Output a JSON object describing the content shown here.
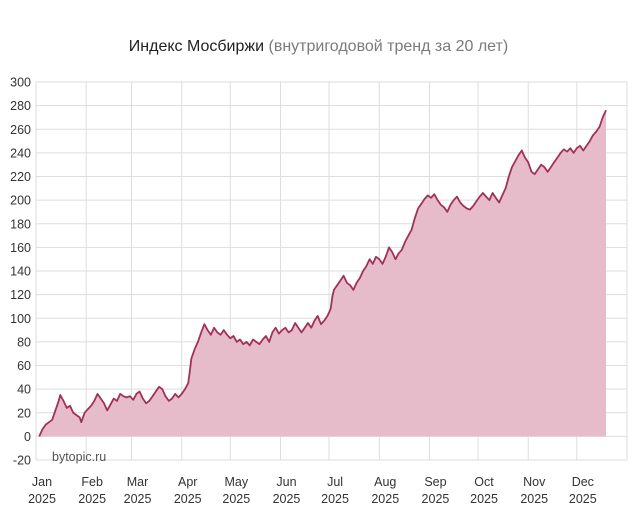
{
  "chart_data": {
    "type": "area",
    "title": "Индекс Мосбиржи",
    "subtitle": "(внутригодовой тренд за 20 лет)",
    "watermark": "bytopic.ru",
    "ylim": [
      -20,
      300
    ],
    "yticks": [
      -20,
      0,
      20,
      40,
      60,
      80,
      100,
      120,
      140,
      160,
      180,
      200,
      220,
      240,
      260,
      280,
      300
    ],
    "xlim": [
      0,
      365
    ],
    "month_ticks": [
      {
        "label": "Jan",
        "year": "2025",
        "day": 0
      },
      {
        "label": "Feb",
        "year": "2025",
        "day": 31
      },
      {
        "label": "Mar",
        "year": "2025",
        "day": 59
      },
      {
        "label": "Apr",
        "year": "2025",
        "day": 90
      },
      {
        "label": "May",
        "year": "2025",
        "day": 120
      },
      {
        "label": "Jun",
        "year": "2025",
        "day": 151
      },
      {
        "label": "Jul",
        "year": "2025",
        "day": 181
      },
      {
        "label": "Aug",
        "year": "2025",
        "day": 212
      },
      {
        "label": "Sep",
        "year": "2025",
        "day": 243
      },
      {
        "label": "Oct",
        "year": "2025",
        "day": 273
      },
      {
        "label": "Nov",
        "year": "2025",
        "day": 304
      },
      {
        "label": "Dec",
        "year": "2025",
        "day": 334
      }
    ],
    "grid": true,
    "series": [
      {
        "line_color": "#a3305a",
        "fill_color": "#e6bccb",
        "points": [
          [
            2,
            0
          ],
          [
            4,
            6
          ],
          [
            6,
            10
          ],
          [
            8,
            12
          ],
          [
            10,
            14
          ],
          [
            12,
            22
          ],
          [
            14,
            30
          ],
          [
            15,
            35
          ],
          [
            17,
            30
          ],
          [
            19,
            24
          ],
          [
            21,
            26
          ],
          [
            23,
            20
          ],
          [
            25,
            18
          ],
          [
            27,
            16
          ],
          [
            28,
            12
          ],
          [
            30,
            20
          ],
          [
            32,
            23
          ],
          [
            34,
            26
          ],
          [
            36,
            30
          ],
          [
            38,
            36
          ],
          [
            40,
            32
          ],
          [
            42,
            28
          ],
          [
            44,
            22
          ],
          [
            46,
            27
          ],
          [
            48,
            32
          ],
          [
            50,
            30
          ],
          [
            52,
            36
          ],
          [
            54,
            34
          ],
          [
            56,
            33
          ],
          [
            58,
            34
          ],
          [
            60,
            31
          ],
          [
            62,
            36
          ],
          [
            64,
            38
          ],
          [
            66,
            32
          ],
          [
            68,
            28
          ],
          [
            70,
            30
          ],
          [
            72,
            34
          ],
          [
            74,
            38
          ],
          [
            76,
            42
          ],
          [
            78,
            40
          ],
          [
            80,
            34
          ],
          [
            82,
            30
          ],
          [
            84,
            32
          ],
          [
            86,
            36
          ],
          [
            88,
            33
          ],
          [
            90,
            36
          ],
          [
            92,
            40
          ],
          [
            94,
            45
          ],
          [
            95,
            55
          ],
          [
            96,
            66
          ],
          [
            98,
            74
          ],
          [
            100,
            80
          ],
          [
            102,
            88
          ],
          [
            104,
            95
          ],
          [
            106,
            90
          ],
          [
            108,
            86
          ],
          [
            110,
            92
          ],
          [
            112,
            88
          ],
          [
            114,
            86
          ],
          [
            116,
            90
          ],
          [
            118,
            86
          ],
          [
            120,
            83
          ],
          [
            122,
            85
          ],
          [
            124,
            80
          ],
          [
            126,
            82
          ],
          [
            128,
            78
          ],
          [
            130,
            80
          ],
          [
            132,
            77
          ],
          [
            134,
            82
          ],
          [
            136,
            80
          ],
          [
            138,
            78
          ],
          [
            140,
            82
          ],
          [
            142,
            85
          ],
          [
            144,
            80
          ],
          [
            146,
            88
          ],
          [
            148,
            92
          ],
          [
            150,
            87
          ],
          [
            152,
            90
          ],
          [
            154,
            92
          ],
          [
            156,
            88
          ],
          [
            158,
            90
          ],
          [
            160,
            96
          ],
          [
            162,
            92
          ],
          [
            164,
            88
          ],
          [
            166,
            92
          ],
          [
            168,
            96
          ],
          [
            170,
            92
          ],
          [
            172,
            98
          ],
          [
            174,
            102
          ],
          [
            176,
            95
          ],
          [
            178,
            98
          ],
          [
            180,
            102
          ],
          [
            182,
            108
          ],
          [
            183,
            118
          ],
          [
            184,
            124
          ],
          [
            186,
            128
          ],
          [
            188,
            132
          ],
          [
            190,
            136
          ],
          [
            192,
            130
          ],
          [
            194,
            128
          ],
          [
            196,
            124
          ],
          [
            198,
            130
          ],
          [
            200,
            134
          ],
          [
            202,
            140
          ],
          [
            204,
            144
          ],
          [
            206,
            150
          ],
          [
            208,
            146
          ],
          [
            210,
            152
          ],
          [
            212,
            150
          ],
          [
            214,
            146
          ],
          [
            216,
            152
          ],
          [
            218,
            160
          ],
          [
            220,
            156
          ],
          [
            222,
            150
          ],
          [
            224,
            155
          ],
          [
            226,
            158
          ],
          [
            228,
            165
          ],
          [
            230,
            170
          ],
          [
            232,
            175
          ],
          [
            234,
            185
          ],
          [
            236,
            193
          ],
          [
            238,
            197
          ],
          [
            240,
            201
          ],
          [
            242,
            204
          ],
          [
            244,
            202
          ],
          [
            246,
            205
          ],
          [
            248,
            200
          ],
          [
            250,
            196
          ],
          [
            252,
            194
          ],
          [
            254,
            190
          ],
          [
            256,
            196
          ],
          [
            258,
            200
          ],
          [
            260,
            203
          ],
          [
            262,
            198
          ],
          [
            264,
            195
          ],
          [
            266,
            193
          ],
          [
            268,
            192
          ],
          [
            270,
            195
          ],
          [
            272,
            199
          ],
          [
            274,
            203
          ],
          [
            276,
            206
          ],
          [
            278,
            203
          ],
          [
            280,
            200
          ],
          [
            282,
            206
          ],
          [
            284,
            202
          ],
          [
            286,
            198
          ],
          [
            288,
            204
          ],
          [
            290,
            210
          ],
          [
            292,
            220
          ],
          [
            294,
            228
          ],
          [
            296,
            233
          ],
          [
            298,
            238
          ],
          [
            300,
            242
          ],
          [
            302,
            236
          ],
          [
            304,
            232
          ],
          [
            306,
            224
          ],
          [
            308,
            222
          ],
          [
            310,
            226
          ],
          [
            312,
            230
          ],
          [
            314,
            228
          ],
          [
            316,
            224
          ],
          [
            318,
            228
          ],
          [
            320,
            232
          ],
          [
            322,
            236
          ],
          [
            324,
            240
          ],
          [
            326,
            243
          ],
          [
            328,
            241
          ],
          [
            330,
            244
          ],
          [
            332,
            240
          ],
          [
            334,
            244
          ],
          [
            336,
            246
          ],
          [
            338,
            242
          ],
          [
            340,
            246
          ],
          [
            342,
            250
          ],
          [
            344,
            255
          ],
          [
            346,
            258
          ],
          [
            348,
            262
          ],
          [
            350,
            270
          ],
          [
            352,
            276
          ]
        ]
      }
    ]
  }
}
